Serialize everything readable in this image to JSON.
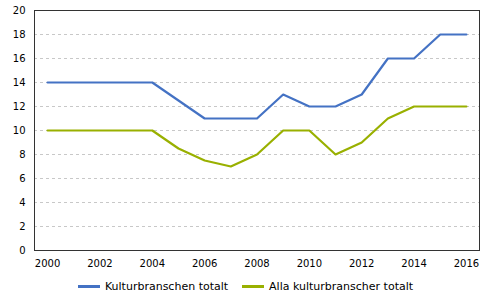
{
  "chart_data": {
    "type": "line",
    "x": [
      2000,
      2001,
      2002,
      2003,
      2004,
      2005,
      2006,
      2007,
      2008,
      2009,
      2010,
      2011,
      2012,
      2013,
      2014,
      2015,
      2016
    ],
    "series": [
      {
        "name": "Kulturbranschen totalt",
        "color": "#4472c4",
        "values": [
          14,
          14,
          14,
          14,
          14,
          12.5,
          11,
          11,
          11,
          13,
          12,
          12,
          13,
          16,
          16,
          18,
          18
        ]
      },
      {
        "name": "Alla kulturbranscher totalt",
        "color": "#99b000",
        "values": [
          10,
          10,
          10,
          10,
          10,
          8.5,
          7.5,
          7,
          8,
          10,
          10,
          8,
          9,
          11,
          12,
          12,
          12
        ]
      }
    ],
    "xlim": [
      1999.5,
      2016.5
    ],
    "ylim": [
      0,
      20
    ],
    "xticks": [
      2000,
      2002,
      2004,
      2006,
      2008,
      2010,
      2012,
      2014,
      2016
    ],
    "yticks": [
      0,
      2,
      4,
      6,
      8,
      10,
      12,
      14,
      16,
      18,
      20
    ],
    "grid": true,
    "legend": "bottom"
  }
}
